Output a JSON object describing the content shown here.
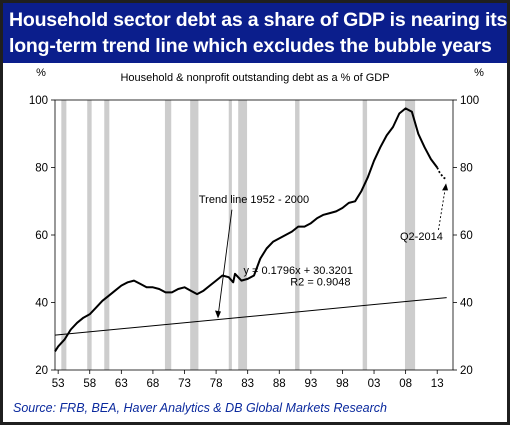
{
  "headline": {
    "line1": "Household sector debt as a share of GDP is nearing its",
    "line2": "long-term trend line which excludes the bubble years"
  },
  "chart_data": {
    "type": "line",
    "title": "Household & nonprofit outstanding debt as a % of  GDP",
    "ylabel_left": "%",
    "ylabel_right": "%",
    "xlim": [
      1952.5,
      2015.5
    ],
    "ylim": [
      20,
      100
    ],
    "x_ticks": [
      1953,
      1958,
      1963,
      1968,
      1973,
      1978,
      1983,
      1988,
      1993,
      1998,
      2003,
      2008,
      2013
    ],
    "x_tick_labels": [
      "53",
      "58",
      "63",
      "68",
      "73",
      "78",
      "83",
      "88",
      "93",
      "98",
      "03",
      "08",
      "13"
    ],
    "y_ticks": [
      20,
      40,
      60,
      80,
      100
    ],
    "y_tick_labels": [
      "20",
      "40",
      "60",
      "80",
      "100"
    ],
    "recessions": [
      [
        1953.5,
        1954.3
      ],
      [
        1957.6,
        1958.3
      ],
      [
        1960.3,
        1961.1
      ],
      [
        1969.9,
        1970.9
      ],
      [
        1973.9,
        1975.2
      ],
      [
        1980.0,
        1980.5
      ],
      [
        1981.5,
        1982.9
      ],
      [
        1990.5,
        1991.2
      ],
      [
        2001.2,
        2001.9
      ],
      [
        2007.9,
        2009.5
      ]
    ],
    "series": [
      {
        "values": [
          [
            1952.5,
            25.5
          ],
          [
            1953,
            27
          ],
          [
            1954,
            29
          ],
          [
            1955,
            32
          ],
          [
            1956,
            34
          ],
          [
            1957,
            35.5
          ],
          [
            1958,
            36.5
          ],
          [
            1959,
            38.5
          ],
          [
            1960,
            40.5
          ],
          [
            1961,
            42
          ],
          [
            1962,
            43.5
          ],
          [
            1963,
            45
          ],
          [
            1964,
            46
          ],
          [
            1965,
            46.5
          ],
          [
            1966,
            45.5
          ],
          [
            1967,
            44.5
          ],
          [
            1968,
            44.5
          ],
          [
            1969,
            44
          ],
          [
            1970,
            43
          ],
          [
            1971,
            43
          ],
          [
            1972,
            44
          ],
          [
            1973,
            44.5
          ],
          [
            1974,
            43.5
          ],
          [
            1975,
            42.5
          ],
          [
            1976,
            43.5
          ],
          [
            1977,
            45
          ],
          [
            1978,
            46.5
          ],
          [
            1979,
            48
          ],
          [
            1980,
            47.5
          ],
          [
            1980.7,
            46
          ],
          [
            1981,
            48.5
          ],
          [
            1982,
            46.5
          ],
          [
            1983,
            47
          ],
          [
            1984,
            48
          ],
          [
            1985,
            53
          ],
          [
            1986,
            56
          ],
          [
            1987,
            58
          ],
          [
            1988,
            59
          ],
          [
            1989,
            60
          ],
          [
            1990,
            61
          ],
          [
            1991,
            62.5
          ],
          [
            1992,
            62.5
          ],
          [
            1993,
            63.5
          ],
          [
            1994,
            65
          ],
          [
            1995,
            66
          ],
          [
            1996,
            66.5
          ],
          [
            1997,
            67
          ],
          [
            1998,
            68
          ],
          [
            1999,
            69.5
          ],
          [
            2000,
            70
          ],
          [
            2001,
            73
          ],
          [
            2002,
            77
          ],
          [
            2003,
            82
          ],
          [
            2004,
            86
          ],
          [
            2005,
            89.5
          ],
          [
            2006,
            92
          ],
          [
            2007,
            96
          ],
          [
            2008,
            97.5
          ],
          [
            2008.5,
            97
          ],
          [
            2009,
            96.5
          ],
          [
            2010,
            90
          ],
          [
            2011,
            86
          ],
          [
            2012,
            82.5
          ],
          [
            2013,
            80
          ]
        ]
      },
      {
        "values": [
          [
            2013,
            80
          ],
          [
            2013.4,
            78.5
          ],
          [
            2014,
            77
          ],
          [
            2014.5,
            76.5
          ]
        ]
      }
    ],
    "trend_line": {
      "slope": 0.1796,
      "intercept": 30.3201,
      "x_start": 1952.5,
      "x_end": 2014.5
    },
    "annotations": [
      {
        "name": "trend-label",
        "text": "Trend line 1952 - 2000",
        "x": 1984,
        "y": 69.5
      },
      {
        "name": "equation-line1",
        "text": "y = 0.1796x + 30.3201",
        "x": 1991,
        "y": 48.5
      },
      {
        "name": "equation-line2",
        "text": "R2 = 0.9048",
        "x": 1994.5,
        "y": 45
      },
      {
        "name": "q2-label",
        "text": "Q2-2014",
        "x": 2010.5,
        "y": 58.5
      }
    ],
    "source": "Source: FRB, BEA, Haver Analytics & DB Global Markets Research",
    "colors": {
      "line": "#000000",
      "recession_band": "#cdcdcd",
      "banner": "#0b1e8c",
      "source": "#0b2a9e"
    }
  }
}
